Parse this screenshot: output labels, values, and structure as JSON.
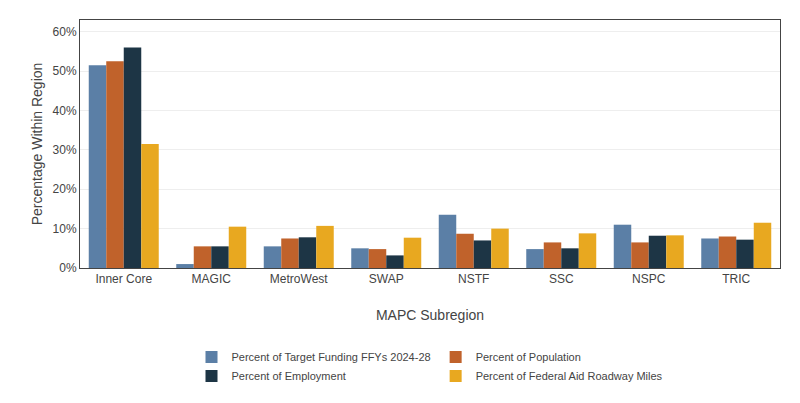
{
  "chart_data": {
    "type": "bar",
    "xlabel": "MAPC Subregion",
    "ylabel": "Percentage Within Region",
    "categories": [
      "Inner Core",
      "MAGIC",
      "MetroWest",
      "SWAP",
      "NSTF",
      "SSC",
      "NSPC",
      "TRIC"
    ],
    "series": [
      {
        "name": "Percent of Target Funding FFYs 2024-28",
        "color": "#5b7fa6",
        "values": [
          51.5,
          1.0,
          5.5,
          5.0,
          13.5,
          4.8,
          11.0,
          7.5
        ]
      },
      {
        "name": "Percent of Population",
        "color": "#c0622b",
        "values": [
          52.5,
          5.5,
          7.5,
          4.8,
          8.7,
          6.5,
          6.5,
          8.0
        ]
      },
      {
        "name": "Percent of Employment",
        "color": "#1d3545",
        "values": [
          56.0,
          5.5,
          7.8,
          3.2,
          7.0,
          5.0,
          8.2,
          7.2
        ]
      },
      {
        "name": "Percent of Federal Aid Roadway Miles",
        "color": "#e8a820",
        "values": [
          31.5,
          10.5,
          10.7,
          7.7,
          10.0,
          8.8,
          8.3,
          11.5
        ]
      }
    ],
    "ylim": [
      0,
      63
    ],
    "yticks": [
      {
        "value": 0,
        "label": "0%"
      },
      {
        "value": 10,
        "label": "10%"
      },
      {
        "value": 20,
        "label": "20%"
      },
      {
        "value": 30,
        "label": "30%"
      },
      {
        "value": 40,
        "label": "40%"
      },
      {
        "value": 50,
        "label": "50%"
      },
      {
        "value": 60,
        "label": "60%"
      }
    ],
    "grid": true,
    "legend": "bottom"
  }
}
